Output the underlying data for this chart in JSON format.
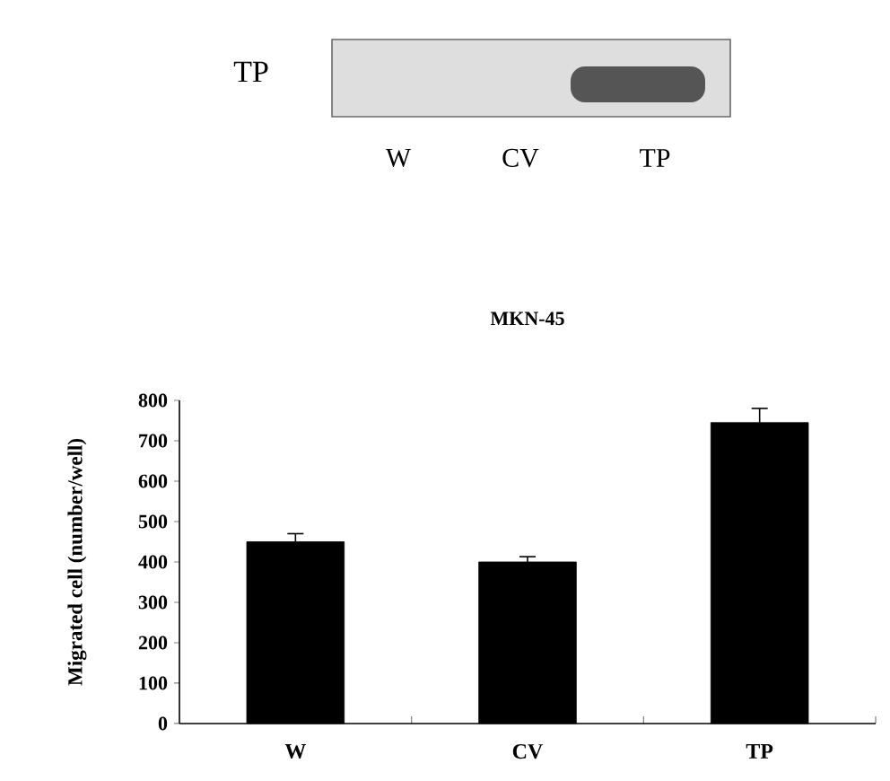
{
  "chart_data": {
    "type": "bar",
    "title": "MKN-45",
    "ylabel": "Migrated cell (number/well)",
    "categories": [
      "W",
      "CV",
      "TP"
    ],
    "values": [
      450,
      400,
      745
    ],
    "errors": [
      20,
      13,
      35
    ],
    "color": "#000000",
    "ylim": [
      0,
      800
    ],
    "yticks": [
      0,
      100,
      200,
      300,
      400,
      500,
      600,
      700,
      800
    ],
    "annotations": [
      "TP",
      "W",
      "CV",
      "TP"
    ]
  }
}
